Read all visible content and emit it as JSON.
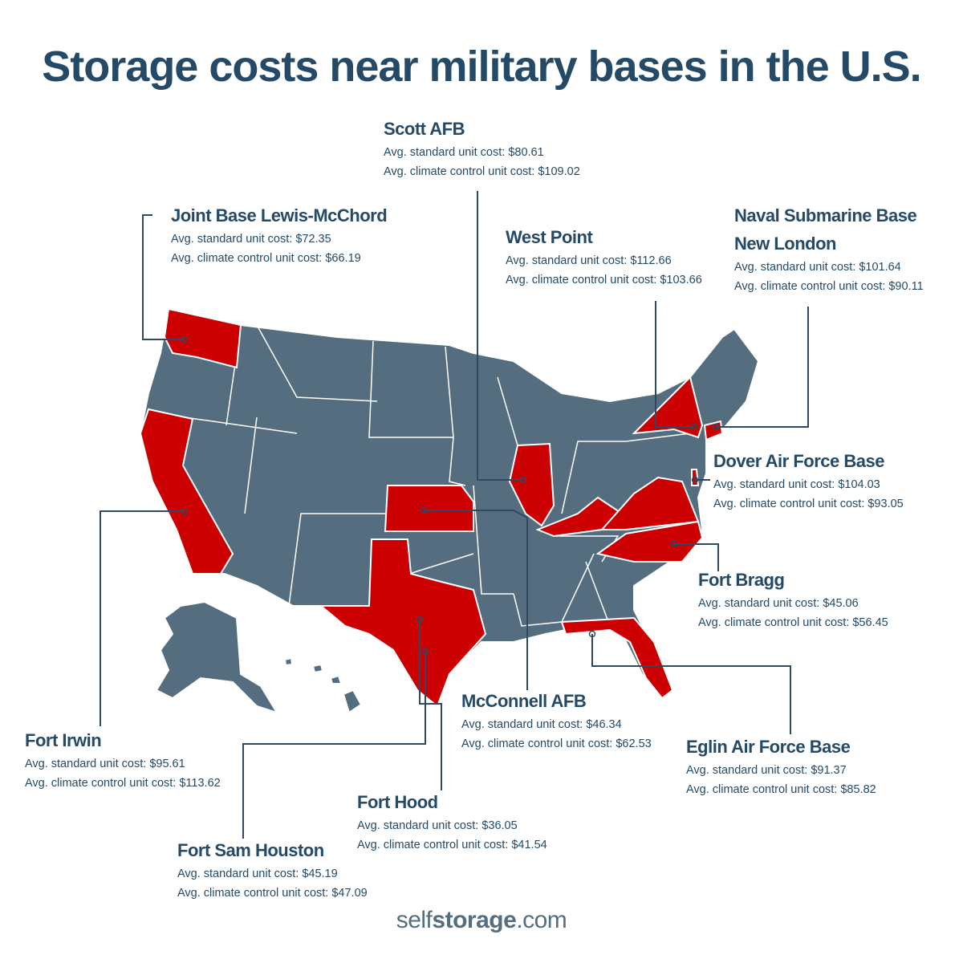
{
  "title": "Storage costs near military bases in the U.S.",
  "colors": {
    "title": "#244a67",
    "map_states": "#546e7f",
    "highlighted_states": "#cc0000",
    "leader_lines": "#2d4a62",
    "logo": "#546e7f"
  },
  "labels": {
    "standard": "Avg. standard unit cost:",
    "climate": "Avg. climate control unit cost:"
  },
  "bases": [
    {
      "name": "Scott AFB",
      "standard": "$80.61",
      "climate": "$109.02"
    },
    {
      "name": "Joint Base Lewis-McChord",
      "standard": "$72.35",
      "climate": "$66.19"
    },
    {
      "name": "West Point",
      "standard": "$112.66",
      "climate": "$103.66"
    },
    {
      "name": "Naval Submarine Base New London",
      "standard": "$101.64",
      "climate": "$90.11"
    },
    {
      "name": "Dover Air Force Base",
      "standard": "$104.03",
      "climate": "$93.05"
    },
    {
      "name": "Fort Bragg",
      "standard": "$45.06",
      "climate": "$56.45"
    },
    {
      "name": "Eglin Air Force Base",
      "standard": "$91.37",
      "climate": "$85.82"
    },
    {
      "name": "McConnell AFB",
      "standard": "$46.34",
      "climate": "$62.53"
    },
    {
      "name": "Fort Irwin",
      "standard": "$95.61",
      "climate": "$113.62"
    },
    {
      "name": "Fort Hood",
      "standard": "$36.05",
      "climate": "$41.54"
    },
    {
      "name": "Fort Sam Houston",
      "standard": "$45.19",
      "climate": "$47.09"
    }
  ],
  "highlighted_states": [
    "Washington",
    "California",
    "Texas",
    "Kansas",
    "Illinois",
    "Kentucky",
    "Virginia",
    "North Carolina",
    "Florida",
    "New York",
    "Connecticut",
    "Delaware"
  ],
  "logo": {
    "part1": "self",
    "part2": "storage",
    "part3": ".com"
  }
}
